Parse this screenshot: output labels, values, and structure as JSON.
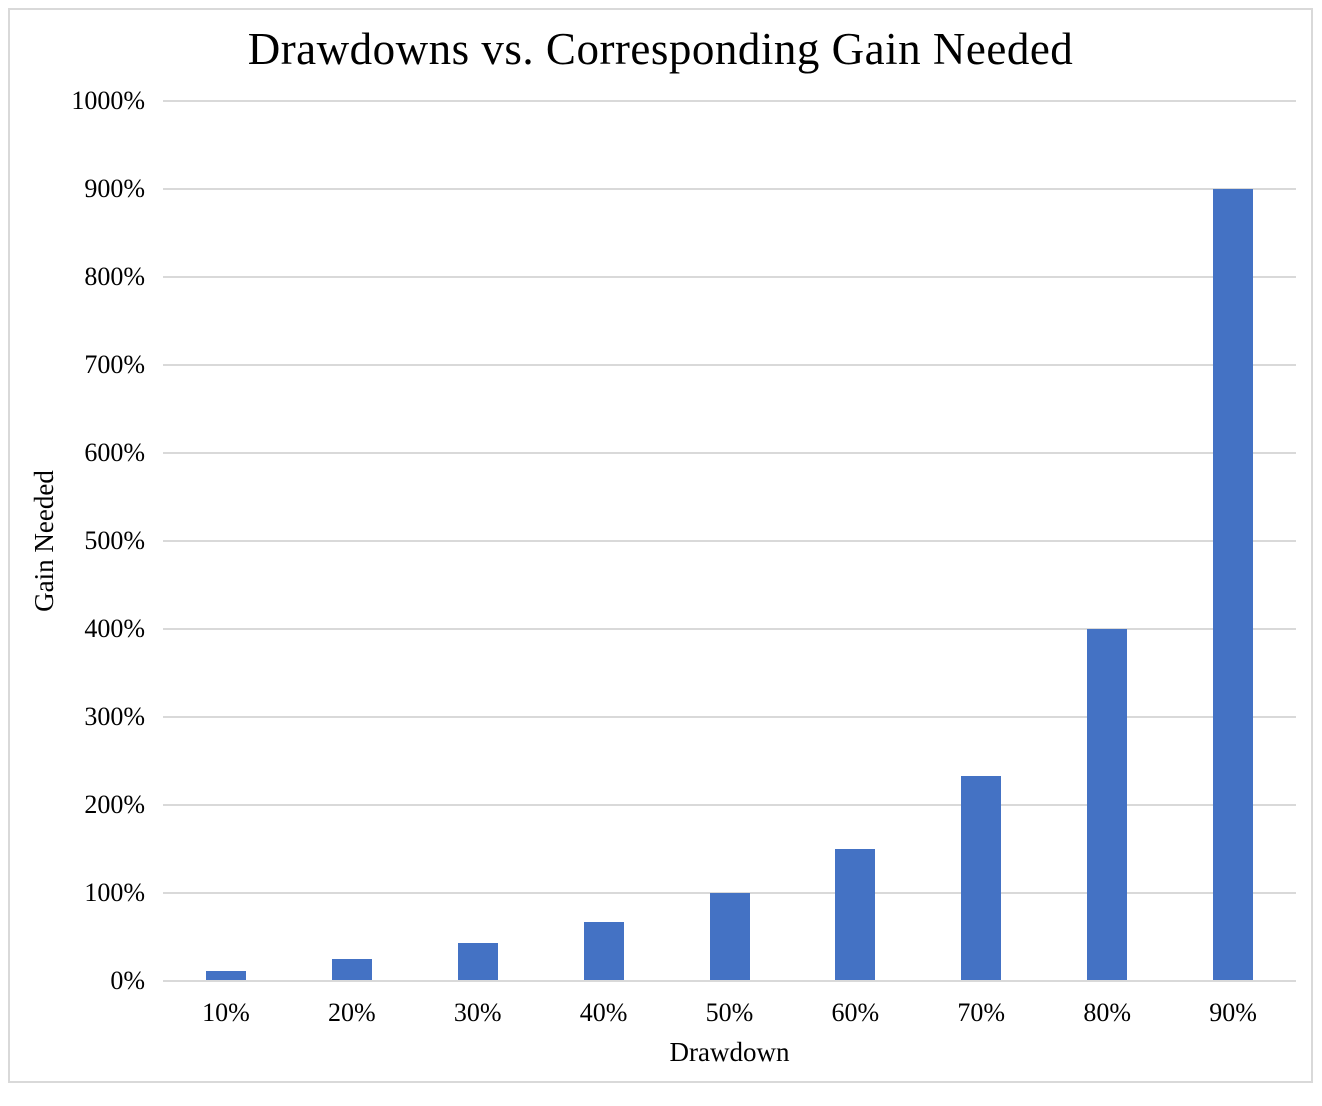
{
  "chart_data": {
    "type": "bar",
    "title": "Drawdowns vs. Corresponding Gain Needed",
    "xlabel": "Drawdown",
    "ylabel": "Gain Needed",
    "categories": [
      "10%",
      "20%",
      "30%",
      "40%",
      "50%",
      "60%",
      "70%",
      "80%",
      "90%"
    ],
    "values": [
      11.11,
      25,
      42.86,
      66.67,
      100,
      150,
      233.33,
      400,
      900
    ],
    "series": [
      {
        "name": "Gain Needed",
        "values": [
          11.11,
          25,
          42.86,
          66.67,
          100,
          150,
          233.33,
          400,
          900
        ]
      }
    ],
    "ylim": [
      0,
      1000
    ],
    "ytick_step": 100,
    "ytick_labels": [
      "0%",
      "100%",
      "200%",
      "300%",
      "400%",
      "500%",
      "600%",
      "700%",
      "800%",
      "900%",
      "1000%"
    ],
    "grid": true,
    "legend": false,
    "colors": {
      "bar": "#4472C4",
      "gridline": "#D9D9D9",
      "axis_line": "#D9D9D9",
      "frame_border": "#D9D9D9",
      "text": "#000000",
      "background": "#FFFFFF"
    }
  }
}
